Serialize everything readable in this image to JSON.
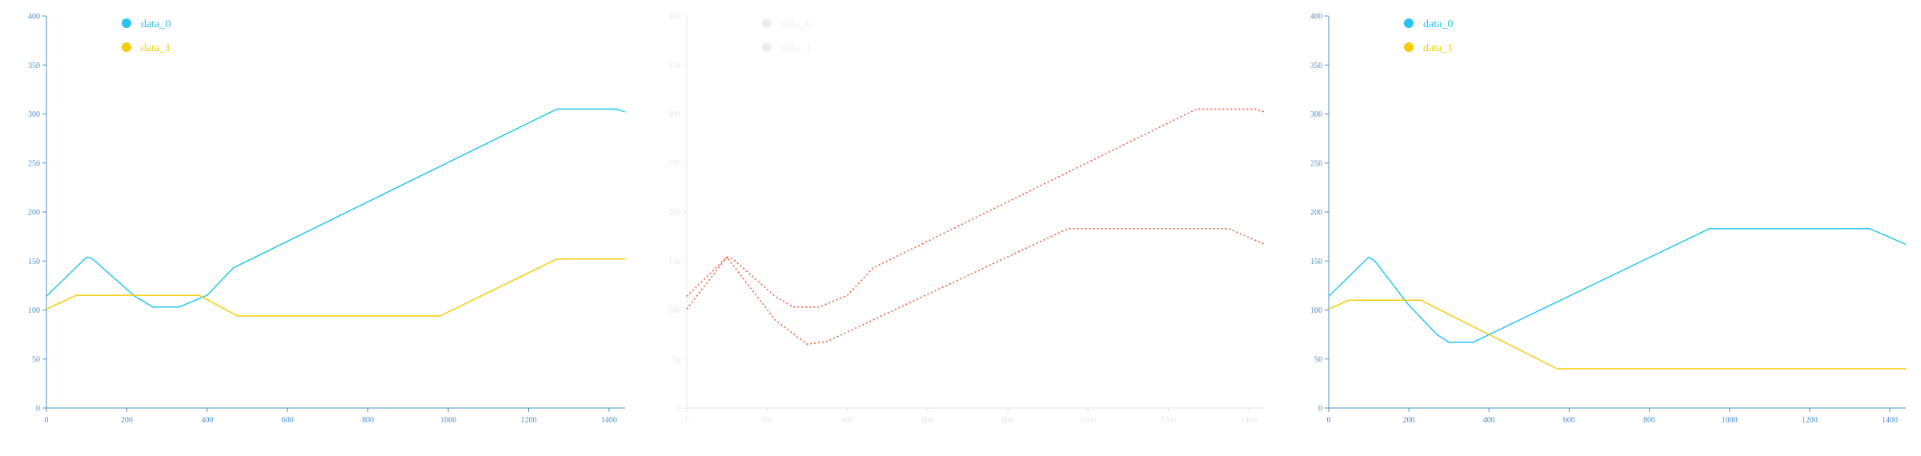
{
  "chart_data": [
    {
      "type": "line",
      "xlim": [
        0,
        1440
      ],
      "ylim": [
        0,
        400
      ],
      "xticks": [
        0,
        200,
        400,
        600,
        800,
        1000,
        1200,
        1400
      ],
      "yticks": [
        0,
        50,
        100,
        150,
        200,
        250,
        300,
        350,
        400
      ],
      "legend": "top-left",
      "axis_color": "#4a90c8",
      "series": [
        {
          "name": "data_0",
          "color": "#29c4ef",
          "points": [
            [
              0,
              114
            ],
            [
              100,
              154
            ],
            [
              115,
              152
            ],
            [
              220,
              114
            ],
            [
              265,
              103
            ],
            [
              330,
              103
            ],
            [
              400,
              115
            ],
            [
              465,
              143
            ],
            [
              1270,
              305
            ],
            [
              1420,
              305
            ],
            [
              1440,
              302
            ]
          ]
        },
        {
          "name": "data_1",
          "color": "#f5cc0a",
          "points": [
            [
              0,
              101
            ],
            [
              75,
              115
            ],
            [
              380,
              115
            ],
            [
              475,
              94
            ],
            [
              980,
              94
            ],
            [
              1270,
              152
            ],
            [
              1440,
              152
            ]
          ]
        }
      ]
    },
    {
      "type": "line",
      "xlim": [
        0,
        1440
      ],
      "ylim": [
        0,
        400
      ],
      "xticks": [
        0,
        200,
        400,
        600,
        800,
        1000,
        1200,
        1400
      ],
      "yticks": [
        0,
        50,
        100,
        150,
        200,
        250,
        300,
        350,
        400
      ],
      "legend": "top-left",
      "faded": true,
      "axis_color": "#e6e6e6",
      "series": [
        {
          "name": "data_0",
          "color": "#e8603c",
          "points": [
            [
              0,
              114
            ],
            [
              100,
              154
            ],
            [
              115,
              152
            ],
            [
              220,
              114
            ],
            [
              265,
              103
            ],
            [
              330,
              103
            ],
            [
              400,
              115
            ],
            [
              465,
              143
            ],
            [
              1270,
              305
            ],
            [
              1420,
              305
            ],
            [
              1440,
              302
            ]
          ]
        },
        {
          "name": "data_1",
          "color": "#e8603c",
          "points": [
            [
              0,
              101
            ],
            [
              100,
              154
            ],
            [
              220,
              90
            ],
            [
              300,
              65
            ],
            [
              350,
              68
            ],
            [
              950,
              183
            ],
            [
              1350,
              183
            ],
            [
              1440,
              167
            ]
          ]
        }
      ]
    },
    {
      "type": "line",
      "xlim": [
        0,
        1440
      ],
      "ylim": [
        0,
        400
      ],
      "xticks": [
        0,
        200,
        400,
        600,
        800,
        1000,
        1200,
        1400
      ],
      "yticks": [
        0,
        50,
        100,
        150,
        200,
        250,
        300,
        350,
        400
      ],
      "legend": "top-left",
      "axis_color": "#4a90c8",
      "series": [
        {
          "name": "data_0",
          "color": "#29c4ef",
          "points": [
            [
              0,
              114
            ],
            [
              100,
              154
            ],
            [
              115,
              150
            ],
            [
              200,
              105
            ],
            [
              270,
              75
            ],
            [
              300,
              67
            ],
            [
              360,
              67
            ],
            [
              950,
              183
            ],
            [
              1350,
              183
            ],
            [
              1440,
              167
            ]
          ]
        },
        {
          "name": "data_1",
          "color": "#f5cc0a",
          "points": [
            [
              0,
              101
            ],
            [
              50,
              110
            ],
            [
              230,
              110
            ],
            [
              570,
              40
            ],
            [
              1440,
              40
            ]
          ]
        }
      ]
    }
  ]
}
